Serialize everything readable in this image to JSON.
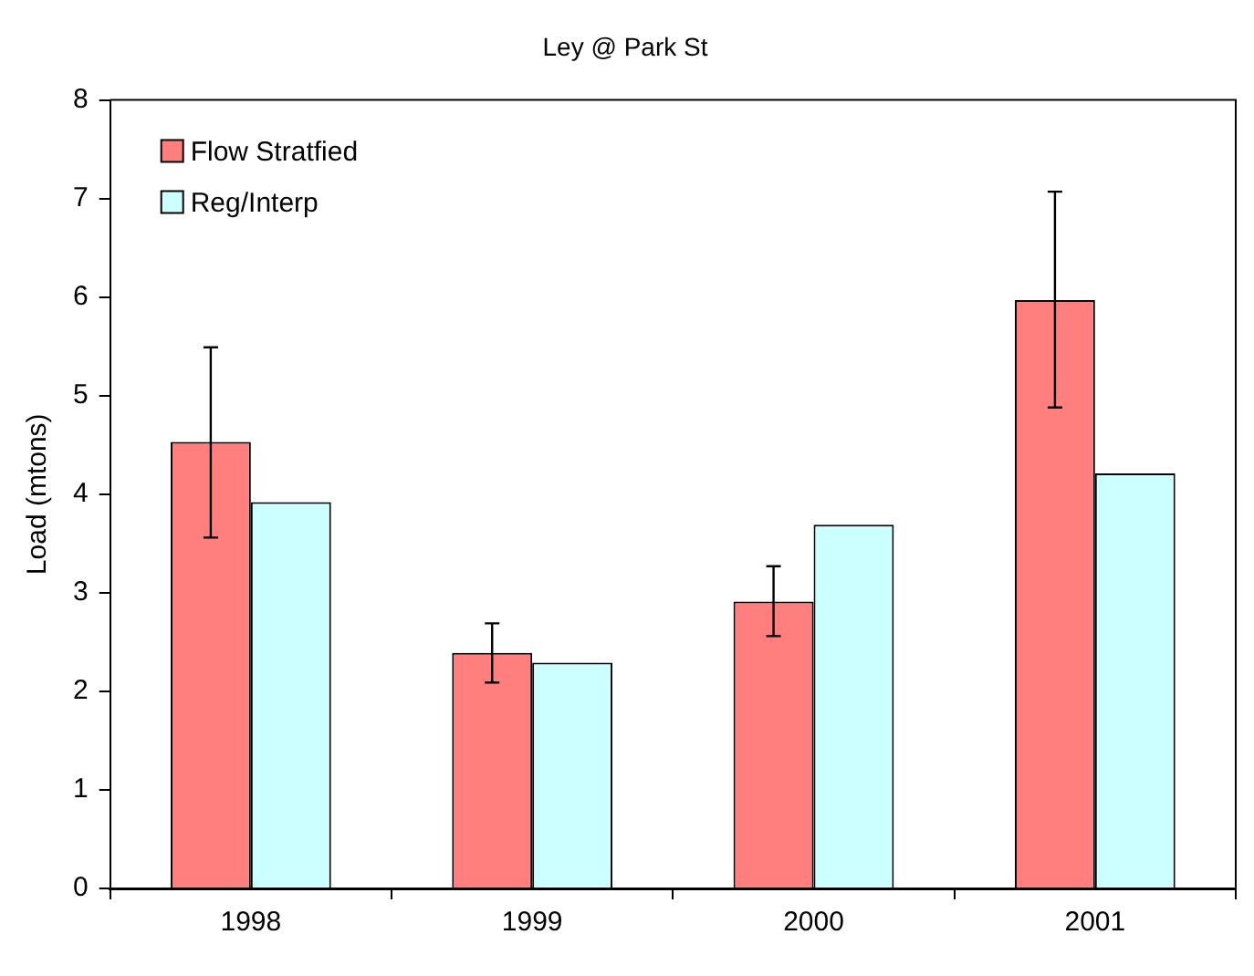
{
  "chart_data": {
    "type": "bar",
    "title": "Ley @ Park St",
    "ylabel": "Load (mtons)",
    "categories": [
      "1998",
      "1999",
      "2000",
      "2001"
    ],
    "series": [
      {
        "name": "Flow Stratfied",
        "color": "#ff7f7f",
        "values": [
          4.53,
          2.39,
          2.91,
          5.97
        ],
        "errors": [
          [
            3.56,
            5.49
          ],
          [
            2.09,
            2.69
          ],
          [
            2.56,
            3.27
          ],
          [
            4.88,
            7.07
          ]
        ]
      },
      {
        "name": "Reg/Interp",
        "color": "#ccffff",
        "values": [
          3.92,
          2.29,
          3.69,
          4.21
        ]
      }
    ],
    "ylim": [
      0,
      8
    ],
    "yticks": [
      0,
      1,
      2,
      3,
      4,
      5,
      6,
      7,
      8
    ],
    "grid": false,
    "legend": "top left"
  }
}
